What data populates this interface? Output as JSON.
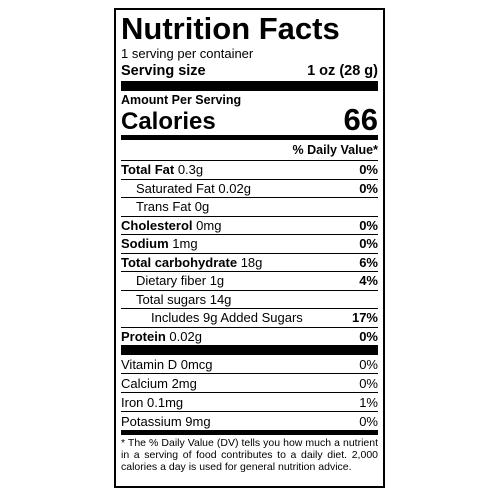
{
  "label": {
    "title": "Nutrition Facts",
    "servings_per_container": "1 serving per container",
    "serving_size_label": "Serving size",
    "serving_size_value": "1 oz (28 g)",
    "amount_per_serving": "Amount Per Serving",
    "calories_label": "Calories",
    "calories_value": "66",
    "dv_header": "% Daily Value*"
  },
  "nutrients": [
    {
      "name": "Total Fat",
      "amount": "0.3g",
      "dv": "0%"
    },
    {
      "name": "Saturated Fat",
      "amount": "0.02g",
      "dv": "0%"
    },
    {
      "name": "Trans Fat",
      "amount": "0g",
      "dv": ""
    },
    {
      "name": "Cholesterol",
      "amount": "0mg",
      "dv": "0%"
    },
    {
      "name": "Sodium",
      "amount": "1mg",
      "dv": "0%"
    },
    {
      "name": "Total carbohydrate",
      "amount": "18g",
      "dv": "6%"
    },
    {
      "name": "Dietary fiber",
      "amount": "1g",
      "dv": "4%"
    },
    {
      "name": "Total sugars",
      "amount": "14g",
      "dv": ""
    },
    {
      "name": "Includes 9g Added Sugars",
      "amount": "",
      "dv": "17%"
    },
    {
      "name": "Protein",
      "amount": "0.02g",
      "dv": "0%"
    }
  ],
  "vitamins": [
    {
      "text": "Vitamin D 0mcg",
      "dv": "0%"
    },
    {
      "text": "Calcium 2mg",
      "dv": "0%"
    },
    {
      "text": "Iron 0.1mg",
      "dv": "1%"
    },
    {
      "text": "Potassium 9mg",
      "dv": "0%"
    }
  ],
  "footnote": "* The % Daily Value (DV) tells you how much a nutrient in a serving of food contributes to a daily diet. 2,000 calories a day is used for general nutrition advice."
}
